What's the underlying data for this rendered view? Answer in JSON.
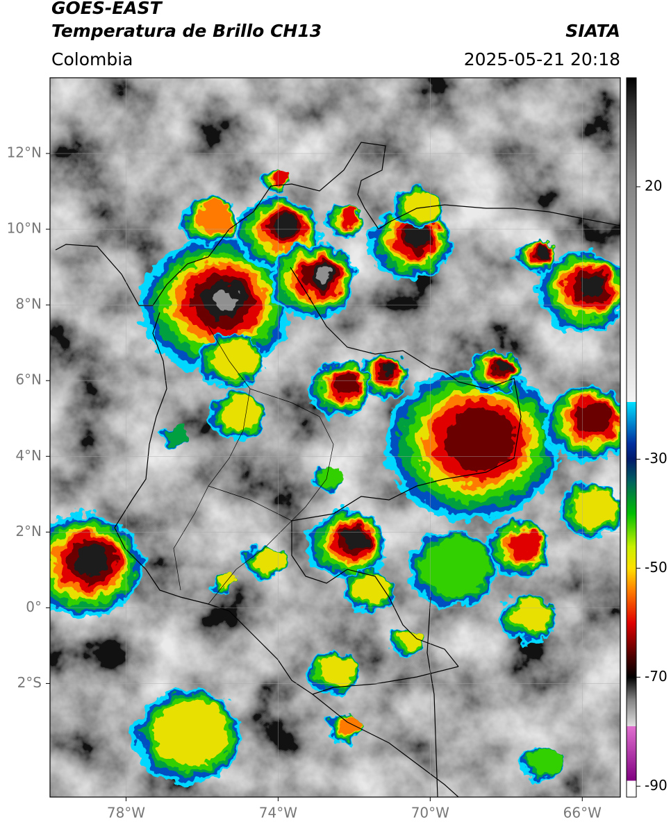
{
  "header": {
    "title": "GOES-EAST",
    "subtitle": "Temperatura de Brillo CH13",
    "source": "SIATA",
    "region": "Colombia",
    "datetime": "2025-05-21 20:18"
  },
  "map": {
    "xlim": [
      -80,
      -65
    ],
    "ylim": [
      -5,
      14
    ],
    "xticks": [
      {
        "value": -78,
        "label": "78°W"
      },
      {
        "value": -74,
        "label": "74°W"
      },
      {
        "value": -70,
        "label": "70°W"
      },
      {
        "value": -66,
        "label": "66°W"
      }
    ],
    "yticks": [
      {
        "value": 12,
        "label": "12°N"
      },
      {
        "value": 10,
        "label": "10°N"
      },
      {
        "value": 8,
        "label": "8°N"
      },
      {
        "value": 6,
        "label": "6°N"
      },
      {
        "value": 4,
        "label": "4°N"
      },
      {
        "value": 2,
        "label": "2°N"
      },
      {
        "value": 0,
        "label": "0°"
      },
      {
        "value": -2,
        "label": "2°S"
      }
    ],
    "grid": true
  },
  "colorbar": {
    "lim": [
      -92,
      40
    ],
    "ticks": [
      20,
      -30,
      -50,
      -70,
      -90
    ],
    "stops": [
      {
        "value": 40,
        "color": "#000000"
      },
      {
        "value": 35,
        "color": "#303030"
      },
      {
        "value": 22,
        "color": "#808080"
      },
      {
        "value": -19.5,
        "color": "#f4f4f4"
      },
      {
        "value": -19.5,
        "color": "#00e0ff"
      },
      {
        "value": -27,
        "color": "#0030a0"
      },
      {
        "value": -30,
        "color": "#001a6a"
      },
      {
        "value": -34,
        "color": "#006060"
      },
      {
        "value": -40,
        "color": "#00c000"
      },
      {
        "value": -46,
        "color": "#c8f000"
      },
      {
        "value": -50,
        "color": "#ffe000"
      },
      {
        "value": -54,
        "color": "#ff8000"
      },
      {
        "value": -60,
        "color": "#e00000"
      },
      {
        "value": -66,
        "color": "#500000"
      },
      {
        "value": -70,
        "color": "#000000"
      },
      {
        "value": -74,
        "color": "#808080"
      },
      {
        "value": -79,
        "color": "#e0e0e0"
      },
      {
        "value": -79,
        "color": "#e070d0"
      },
      {
        "value": -89,
        "color": "#800080"
      },
      {
        "value": -89,
        "color": "#ffffff"
      },
      {
        "value": -92,
        "color": "#ffffff"
      }
    ]
  }
}
